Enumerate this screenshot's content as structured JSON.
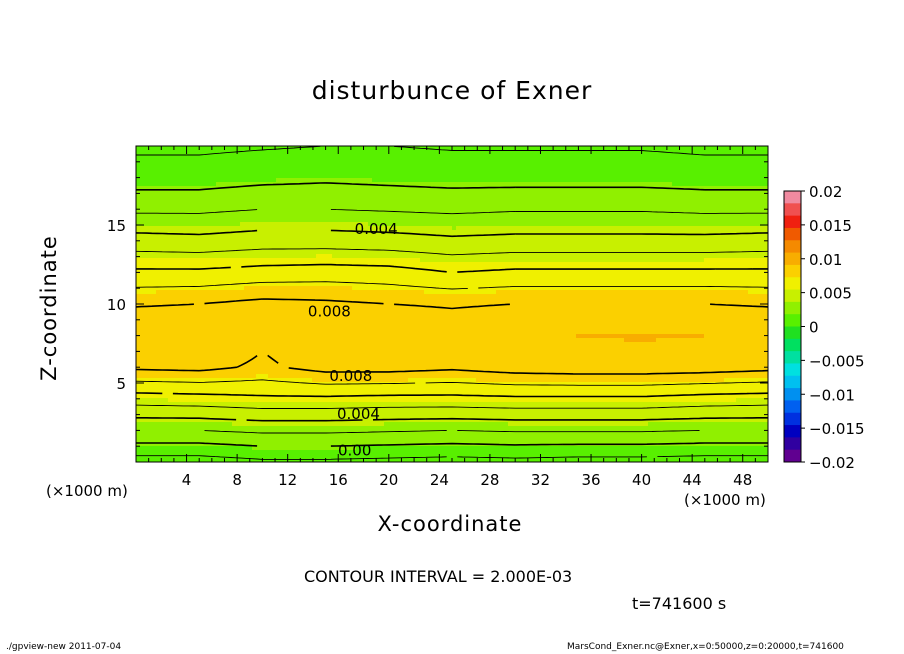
{
  "title": "disturbunce of Exner",
  "xlabel": "X-coordinate",
  "ylabel": "Z-coordinate",
  "x_unit_left": "(×1000 m)",
  "x_unit_right": "(×1000 m)",
  "contour_interval": "CONTOUR INTERVAL = 2.000E-03",
  "time_label": "t=741600 s",
  "footer_left": "./gpview-new   2011-07-04",
  "footer_right": "MarsCond_Exner.nc@Exner,x=0:50000,z=0:20000,t=741600",
  "chart_data": {
    "type": "heatmap",
    "title": "disturbunce of Exner",
    "xlabel": "X-coordinate",
    "ylabel": "Z-coordinate",
    "xlim": [
      0,
      50
    ],
    "ylim": [
      0,
      20
    ],
    "x_ticks": [
      4,
      8,
      12,
      16,
      20,
      24,
      28,
      32,
      36,
      40,
      44,
      48
    ],
    "y_ticks": [
      5,
      10,
      15
    ],
    "x_tick_labels": [
      "4",
      "8",
      "12",
      "16",
      "20",
      "24",
      "28",
      "32",
      "36",
      "40",
      "44",
      "48"
    ],
    "y_tick_labels": [
      "5",
      "10",
      "15"
    ],
    "colorbar": {
      "range": [
        -0.02,
        0.02
      ],
      "tick_values": [
        0.02,
        0.015,
        0.01,
        0.005,
        0,
        -0.005,
        -0.01,
        -0.015,
        -0.02
      ],
      "tick_labels": [
        "0.02",
        "0.015",
        "0.01",
        "0.005",
        "0",
        "−0.005",
        "−0.01",
        "−0.015",
        "−0.02"
      ],
      "colors": [
        "#f08aa0",
        "#f05050",
        "#f02010",
        "#f05a00",
        "#f58a00",
        "#f8ad00",
        "#fbd000",
        "#f0f000",
        "#c8f000",
        "#90f000",
        "#58f000",
        "#20e020",
        "#00e060",
        "#00e0a0",
        "#00e0e0",
        "#00c0f0",
        "#0090f0",
        "#0060f0",
        "#0030e0",
        "#0000c0",
        "#3000a0",
        "#600090"
      ]
    },
    "contour_labels": [
      {
        "text": "0.004",
        "x": 19.0,
        "z": 14.8
      },
      {
        "text": "0.008",
        "x": 15.3,
        "z": 9.6
      },
      {
        "text": "0.008",
        "x": 17.0,
        "z": 5.5
      },
      {
        "text": "0.004",
        "x": 17.6,
        "z": 3.1
      },
      {
        "text": "0.00",
        "x": 17.3,
        "z": 0.8
      }
    ],
    "field_description": "Exner disturbance field, layered: ~0.001 near surface, ~0.009 maximum at z 6–9 km, decreasing to ~0.0005 at top",
    "x_samples": [
      0,
      5,
      10,
      15,
      20,
      25,
      30,
      35,
      40,
      45,
      50
    ],
    "z_samples": [
      0,
      2,
      4,
      6,
      8,
      10,
      12,
      14,
      16,
      18,
      20
    ],
    "values": [
      [
        0.0005,
        0.0005,
        0.0008,
        0.0008,
        0.0007,
        0.0006,
        0.0007,
        0.0006,
        0.0006,
        0.0005,
        0.0005
      ],
      [
        0.003,
        0.003,
        0.0032,
        0.0032,
        0.0031,
        0.003,
        0.0031,
        0.0031,
        0.0031,
        0.003,
        0.003
      ],
      [
        0.0055,
        0.0056,
        0.0058,
        0.0058,
        0.0057,
        0.0057,
        0.0058,
        0.0058,
        0.0058,
        0.0056,
        0.0055
      ],
      [
        0.0082,
        0.0083,
        0.0078,
        0.0084,
        0.0084,
        0.0082,
        0.0085,
        0.0086,
        0.0086,
        0.0085,
        0.0083
      ],
      [
        0.009,
        0.0091,
        0.0082,
        0.0088,
        0.0089,
        0.0086,
        0.0089,
        0.0091,
        0.0092,
        0.0091,
        0.009
      ],
      [
        0.0079,
        0.008,
        0.0083,
        0.0082,
        0.008,
        0.0079,
        0.008,
        0.008,
        0.008,
        0.008,
        0.0079
      ],
      [
        0.0062,
        0.0062,
        0.0064,
        0.0065,
        0.0064,
        0.006,
        0.0062,
        0.0062,
        0.0062,
        0.0062,
        0.0062
      ],
      [
        0.0044,
        0.0043,
        0.0045,
        0.0045,
        0.0044,
        0.0042,
        0.0043,
        0.0043,
        0.0043,
        0.0043,
        0.0044
      ],
      [
        0.0028,
        0.0028,
        0.003,
        0.003,
        0.0029,
        0.0028,
        0.0029,
        0.0029,
        0.0029,
        0.0028,
        0.0028
      ],
      [
        0.0015,
        0.0015,
        0.0017,
        0.0018,
        0.0017,
        0.0016,
        0.0016,
        0.0016,
        0.0016,
        0.0015,
        0.0015
      ],
      [
        0.0008,
        0.0008,
        0.0009,
        0.001,
        0.001,
        0.0009,
        0.0009,
        0.0009,
        0.0009,
        0.0008,
        0.0008
      ]
    ]
  }
}
